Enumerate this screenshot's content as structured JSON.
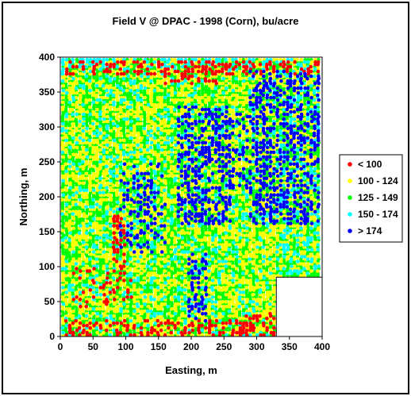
{
  "chart_data": {
    "type": "scatter",
    "title": "Field V @ DPAC - 1998 (Corn), bu/acre",
    "xlabel": "Easting, m",
    "ylabel": "Northing, m",
    "xlim": [
      0,
      400
    ],
    "ylim": [
      0,
      400
    ],
    "xticks": [
      "0",
      "50",
      "100",
      "150",
      "200",
      "250",
      "300",
      "350",
      "400"
    ],
    "yticks": [
      "0",
      "50",
      "100",
      "150",
      "200",
      "250",
      "300",
      "350",
      "400"
    ],
    "grid": false,
    "legend_position": "right",
    "field_boundary": [
      [
        0,
        400
      ],
      [
        400,
        400
      ],
      [
        400,
        85
      ],
      [
        330,
        85
      ],
      [
        330,
        0
      ],
      [
        0,
        0
      ]
    ],
    "series": [
      {
        "name": "< 100",
        "color": "#FF0000",
        "range": [
          0,
          100
        ],
        "areas": [
          {
            "x": [
              5,
              400
            ],
            "y": [
              375,
              395
            ],
            "share": 0.55
          },
          {
            "x": [
              5,
              330
            ],
            "y": [
              0,
              25
            ],
            "share": 0.35
          },
          {
            "x": [
              80,
              100
            ],
            "y": [
              90,
              175
            ],
            "share": 0.45
          },
          {
            "x": [
              20,
              110
            ],
            "y": [
              40,
              100
            ],
            "share": 0.2
          },
          {
            "x": [
              280,
              330
            ],
            "y": [
              15,
              35
            ],
            "share": 0.5
          },
          {
            "x": [
              160,
              240
            ],
            "y": [
              360,
              395
            ],
            "share": 0.35
          }
        ]
      },
      {
        "name": "100 - 124",
        "color": "#FFFF00",
        "range": [
          100,
          124
        ],
        "areas": [
          {
            "x": [
              0,
              400
            ],
            "y": [
              0,
              400
            ],
            "share": 0.3
          },
          {
            "x": [
              200,
              330
            ],
            "y": [
              20,
              70
            ],
            "share": 0.45
          },
          {
            "x": [
              250,
              330
            ],
            "y": [
              100,
              160
            ],
            "share": 0.4
          },
          {
            "x": [
              140,
              200
            ],
            "y": [
              300,
              370
            ],
            "share": 0.35
          },
          {
            "x": [
              10,
              100
            ],
            "y": [
              120,
              260
            ],
            "share": 0.3
          }
        ]
      },
      {
        "name": "125 - 149",
        "color": "#00FF00",
        "range": [
          125,
          149
        ],
        "areas": [
          {
            "x": [
              0,
              400
            ],
            "y": [
              0,
              400
            ],
            "share": 0.35
          }
        ]
      },
      {
        "name": "150 - 174",
        "color": "#00FFFF",
        "range": [
          150,
          174
        ],
        "areas": [
          {
            "x": [
              0,
              400
            ],
            "y": [
              0,
              400
            ],
            "share": 0.1
          },
          {
            "x": [
              330,
              400
            ],
            "y": [
              85,
              400
            ],
            "share": 0.25
          },
          {
            "x": [
              0,
              400
            ],
            "y": [
              385,
              398
            ],
            "share": 0.4
          }
        ]
      },
      {
        "name": "> 174",
        "color": "#0000FF",
        "range": [
          174,
          null
        ],
        "areas": [
          {
            "x": [
              180,
              260
            ],
            "y": [
              160,
              330
            ],
            "share": 0.45
          },
          {
            "x": [
              290,
              400
            ],
            "y": [
              160,
              380
            ],
            "share": 0.5
          },
          {
            "x": [
              90,
              160
            ],
            "y": [
              120,
              250
            ],
            "share": 0.25
          },
          {
            "x": [
              195,
              225
            ],
            "y": [
              20,
              120
            ],
            "share": 0.35
          },
          {
            "x": [
              255,
              290
            ],
            "y": [
              210,
              320
            ],
            "share": 0.25
          }
        ]
      }
    ]
  }
}
